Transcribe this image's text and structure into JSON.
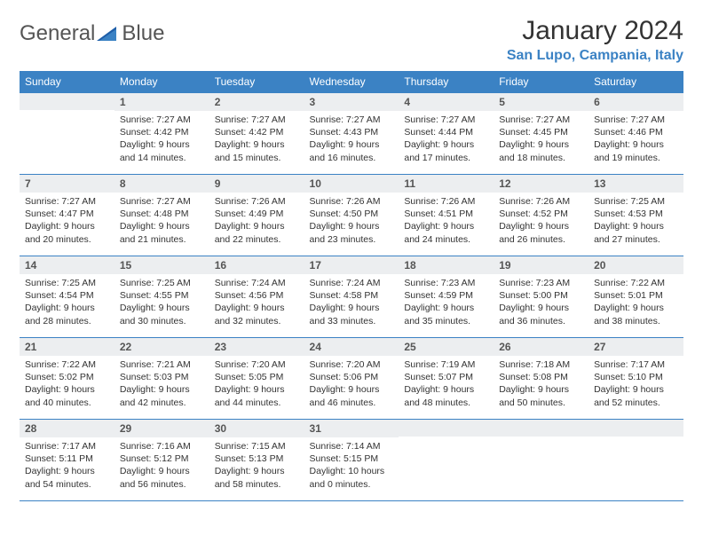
{
  "brand": {
    "word1": "General",
    "word2": "Blue"
  },
  "title": "January 2024",
  "location": "San Lupo, Campania, Italy",
  "colors": {
    "header_bg": "#3b82c4",
    "header_text": "#ffffff",
    "daynum_bg": "#eceef0",
    "row_border": "#3b82c4",
    "text": "#333333",
    "brand_gray": "#555555",
    "brand_blue": "#3b82c4"
  },
  "weekdays": [
    "Sunday",
    "Monday",
    "Tuesday",
    "Wednesday",
    "Thursday",
    "Friday",
    "Saturday"
  ],
  "weeks": [
    [
      {
        "day": "",
        "sunrise": "",
        "sunset": "",
        "daylight": ""
      },
      {
        "day": "1",
        "sunrise": "Sunrise: 7:27 AM",
        "sunset": "Sunset: 4:42 PM",
        "daylight": "Daylight: 9 hours and 14 minutes."
      },
      {
        "day": "2",
        "sunrise": "Sunrise: 7:27 AM",
        "sunset": "Sunset: 4:42 PM",
        "daylight": "Daylight: 9 hours and 15 minutes."
      },
      {
        "day": "3",
        "sunrise": "Sunrise: 7:27 AM",
        "sunset": "Sunset: 4:43 PM",
        "daylight": "Daylight: 9 hours and 16 minutes."
      },
      {
        "day": "4",
        "sunrise": "Sunrise: 7:27 AM",
        "sunset": "Sunset: 4:44 PM",
        "daylight": "Daylight: 9 hours and 17 minutes."
      },
      {
        "day": "5",
        "sunrise": "Sunrise: 7:27 AM",
        "sunset": "Sunset: 4:45 PM",
        "daylight": "Daylight: 9 hours and 18 minutes."
      },
      {
        "day": "6",
        "sunrise": "Sunrise: 7:27 AM",
        "sunset": "Sunset: 4:46 PM",
        "daylight": "Daylight: 9 hours and 19 minutes."
      }
    ],
    [
      {
        "day": "7",
        "sunrise": "Sunrise: 7:27 AM",
        "sunset": "Sunset: 4:47 PM",
        "daylight": "Daylight: 9 hours and 20 minutes."
      },
      {
        "day": "8",
        "sunrise": "Sunrise: 7:27 AM",
        "sunset": "Sunset: 4:48 PM",
        "daylight": "Daylight: 9 hours and 21 minutes."
      },
      {
        "day": "9",
        "sunrise": "Sunrise: 7:26 AM",
        "sunset": "Sunset: 4:49 PM",
        "daylight": "Daylight: 9 hours and 22 minutes."
      },
      {
        "day": "10",
        "sunrise": "Sunrise: 7:26 AM",
        "sunset": "Sunset: 4:50 PM",
        "daylight": "Daylight: 9 hours and 23 minutes."
      },
      {
        "day": "11",
        "sunrise": "Sunrise: 7:26 AM",
        "sunset": "Sunset: 4:51 PM",
        "daylight": "Daylight: 9 hours and 24 minutes."
      },
      {
        "day": "12",
        "sunrise": "Sunrise: 7:26 AM",
        "sunset": "Sunset: 4:52 PM",
        "daylight": "Daylight: 9 hours and 26 minutes."
      },
      {
        "day": "13",
        "sunrise": "Sunrise: 7:25 AM",
        "sunset": "Sunset: 4:53 PM",
        "daylight": "Daylight: 9 hours and 27 minutes."
      }
    ],
    [
      {
        "day": "14",
        "sunrise": "Sunrise: 7:25 AM",
        "sunset": "Sunset: 4:54 PM",
        "daylight": "Daylight: 9 hours and 28 minutes."
      },
      {
        "day": "15",
        "sunrise": "Sunrise: 7:25 AM",
        "sunset": "Sunset: 4:55 PM",
        "daylight": "Daylight: 9 hours and 30 minutes."
      },
      {
        "day": "16",
        "sunrise": "Sunrise: 7:24 AM",
        "sunset": "Sunset: 4:56 PM",
        "daylight": "Daylight: 9 hours and 32 minutes."
      },
      {
        "day": "17",
        "sunrise": "Sunrise: 7:24 AM",
        "sunset": "Sunset: 4:58 PM",
        "daylight": "Daylight: 9 hours and 33 minutes."
      },
      {
        "day": "18",
        "sunrise": "Sunrise: 7:23 AM",
        "sunset": "Sunset: 4:59 PM",
        "daylight": "Daylight: 9 hours and 35 minutes."
      },
      {
        "day": "19",
        "sunrise": "Sunrise: 7:23 AM",
        "sunset": "Sunset: 5:00 PM",
        "daylight": "Daylight: 9 hours and 36 minutes."
      },
      {
        "day": "20",
        "sunrise": "Sunrise: 7:22 AM",
        "sunset": "Sunset: 5:01 PM",
        "daylight": "Daylight: 9 hours and 38 minutes."
      }
    ],
    [
      {
        "day": "21",
        "sunrise": "Sunrise: 7:22 AM",
        "sunset": "Sunset: 5:02 PM",
        "daylight": "Daylight: 9 hours and 40 minutes."
      },
      {
        "day": "22",
        "sunrise": "Sunrise: 7:21 AM",
        "sunset": "Sunset: 5:03 PM",
        "daylight": "Daylight: 9 hours and 42 minutes."
      },
      {
        "day": "23",
        "sunrise": "Sunrise: 7:20 AM",
        "sunset": "Sunset: 5:05 PM",
        "daylight": "Daylight: 9 hours and 44 minutes."
      },
      {
        "day": "24",
        "sunrise": "Sunrise: 7:20 AM",
        "sunset": "Sunset: 5:06 PM",
        "daylight": "Daylight: 9 hours and 46 minutes."
      },
      {
        "day": "25",
        "sunrise": "Sunrise: 7:19 AM",
        "sunset": "Sunset: 5:07 PM",
        "daylight": "Daylight: 9 hours and 48 minutes."
      },
      {
        "day": "26",
        "sunrise": "Sunrise: 7:18 AM",
        "sunset": "Sunset: 5:08 PM",
        "daylight": "Daylight: 9 hours and 50 minutes."
      },
      {
        "day": "27",
        "sunrise": "Sunrise: 7:17 AM",
        "sunset": "Sunset: 5:10 PM",
        "daylight": "Daylight: 9 hours and 52 minutes."
      }
    ],
    [
      {
        "day": "28",
        "sunrise": "Sunrise: 7:17 AM",
        "sunset": "Sunset: 5:11 PM",
        "daylight": "Daylight: 9 hours and 54 minutes."
      },
      {
        "day": "29",
        "sunrise": "Sunrise: 7:16 AM",
        "sunset": "Sunset: 5:12 PM",
        "daylight": "Daylight: 9 hours and 56 minutes."
      },
      {
        "day": "30",
        "sunrise": "Sunrise: 7:15 AM",
        "sunset": "Sunset: 5:13 PM",
        "daylight": "Daylight: 9 hours and 58 minutes."
      },
      {
        "day": "31",
        "sunrise": "Sunrise: 7:14 AM",
        "sunset": "Sunset: 5:15 PM",
        "daylight": "Daylight: 10 hours and 0 minutes."
      },
      {
        "day": "",
        "sunrise": "",
        "sunset": "",
        "daylight": ""
      },
      {
        "day": "",
        "sunrise": "",
        "sunset": "",
        "daylight": ""
      },
      {
        "day": "",
        "sunrise": "",
        "sunset": "",
        "daylight": ""
      }
    ]
  ]
}
